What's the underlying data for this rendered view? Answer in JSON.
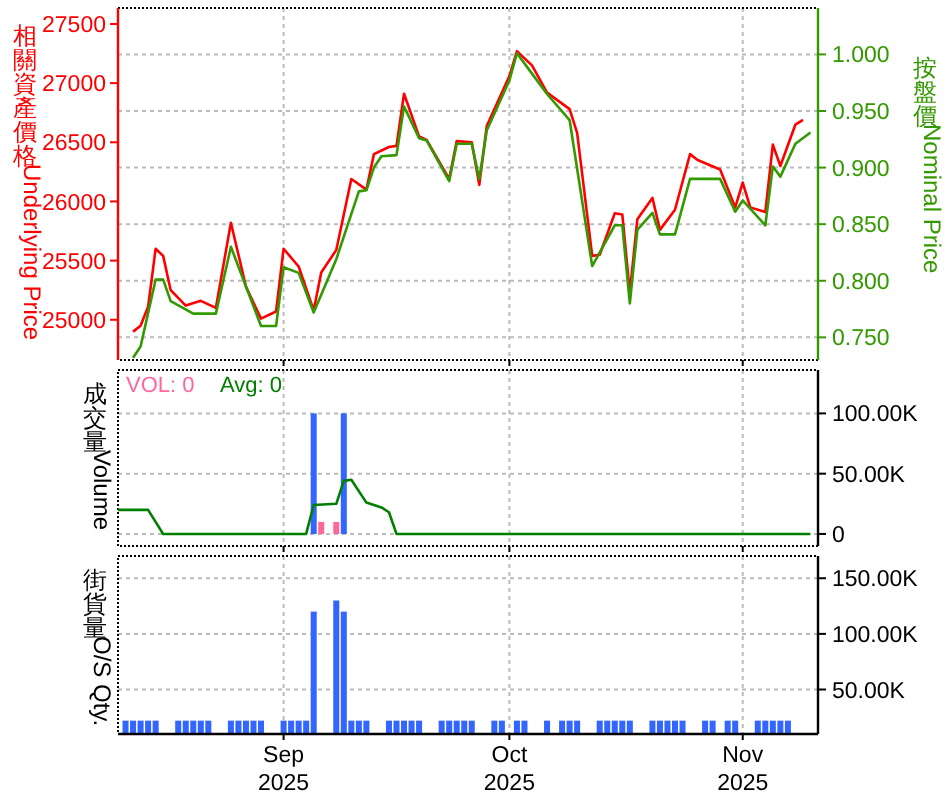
{
  "chart_data": [
    {
      "type": "line",
      "ylabel": "相關資產價格Underlying Price",
      "y2label": "按盤價Nominal Price",
      "xlim": [
        "2025-08-10",
        "2025-11-11"
      ],
      "xticks": [
        {
          "value": "2025-09-01",
          "label": null
        },
        {
          "value": "2025-10-01",
          "label": null
        },
        {
          "value": "2025-11-01",
          "label": null
        }
      ],
      "ylim": [
        24660,
        27635
      ],
      "yticks": [
        25000,
        25500,
        26000,
        26500,
        27000,
        27500
      ],
      "y2lim": [
        0.73,
        1.041
      ],
      "y2ticks": [
        {
          "value": 0.75,
          "label": "0.750"
        },
        {
          "value": 0.8,
          "label": "0.800"
        },
        {
          "value": 0.85,
          "label": "0.850"
        },
        {
          "value": 0.9,
          "label": "0.900"
        },
        {
          "value": 0.95,
          "label": "0.950"
        },
        {
          "value": 1,
          "label": "1.000"
        }
      ],
      "grid": true,
      "tick_labels": "y",
      "series": [
        {
          "color": "#ff0000",
          "x": [
            "2025-08-12",
            "2025-08-13",
            "2025-08-14",
            "2025-08-15",
            "2025-08-16",
            "2025-08-17",
            "2025-08-19",
            "2025-08-21",
            "2025-08-23",
            "2025-08-25",
            "2025-08-27",
            "2025-08-29",
            "2025-08-31",
            "2025-09-01",
            "2025-09-03",
            "2025-09-05",
            "2025-09-06",
            "2025-09-08",
            "2025-09-10",
            "2025-09-12",
            "2025-09-13",
            "2025-09-15",
            "2025-09-16",
            "2025-09-17",
            "2025-09-19",
            "2025-09-20",
            "2025-09-23",
            "2025-09-24",
            "2025-09-26",
            "2025-09-27",
            "2025-09-28",
            "2025-10-01",
            "2025-10-02",
            "2025-10-04",
            "2025-10-06",
            "2025-10-09",
            "2025-10-10",
            "2025-10-12",
            "2025-10-13",
            "2025-10-15",
            "2025-10-16",
            "2025-10-17",
            "2025-10-18",
            "2025-10-20",
            "2025-10-21",
            "2025-10-23",
            "2025-10-25",
            "2025-10-26",
            "2025-10-29",
            "2025-10-31",
            "2025-11-01",
            "2025-11-02",
            "2025-11-04",
            "2025-11-05",
            "2025-11-06",
            "2025-11-08",
            "2025-11-09"
          ],
          "values": [
            24900,
            24950,
            25110,
            25600,
            25540,
            25250,
            25120,
            25160,
            25100,
            25820,
            25280,
            25010,
            25070,
            25600,
            25450,
            25080,
            25400,
            25590,
            26190,
            26100,
            26400,
            26460,
            26470,
            26910,
            26550,
            26520,
            26190,
            26510,
            26500,
            26140,
            26640,
            27060,
            27270,
            27150,
            26920,
            26780,
            26580,
            25540,
            25550,
            25900,
            25890,
            25230,
            25850,
            26030,
            25760,
            25930,
            26400,
            26350,
            26270,
            25950,
            26160,
            25950,
            25910,
            26480,
            26300,
            26650,
            26690
          ]
        },
        {
          "color": "#339900",
          "axis": "y2",
          "x": [
            "2025-08-12",
            "2025-08-13",
            "2025-08-15",
            "2025-08-16",
            "2025-08-17",
            "2025-08-20",
            "2025-08-23",
            "2025-08-25",
            "2025-08-27",
            "2025-08-29",
            "2025-08-31",
            "2025-09-01",
            "2025-09-03",
            "2025-09-05",
            "2025-09-08",
            "2025-09-11",
            "2025-09-12",
            "2025-09-13",
            "2025-09-14",
            "2025-09-16",
            "2025-09-17",
            "2025-09-19",
            "2025-09-20",
            "2025-09-23",
            "2025-09-24",
            "2025-09-26",
            "2025-09-27",
            "2025-09-28",
            "2025-10-01",
            "2025-10-02",
            "2025-10-04",
            "2025-10-06",
            "2025-10-09",
            "2025-10-12",
            "2025-10-15",
            "2025-10-16",
            "2025-10-17",
            "2025-10-18",
            "2025-10-20",
            "2025-10-21",
            "2025-10-23",
            "2025-10-25",
            "2025-10-29",
            "2025-10-31",
            "2025-11-01",
            "2025-11-04",
            "2025-11-05",
            "2025-11-06",
            "2025-11-08",
            "2025-11-10"
          ],
          "values": [
            0.732,
            0.742,
            0.801,
            0.801,
            0.782,
            0.771,
            0.771,
            0.83,
            0.795,
            0.76,
            0.76,
            0.812,
            0.807,
            0.772,
            0.819,
            0.879,
            0.88,
            0.9,
            0.91,
            0.911,
            0.954,
            0.926,
            0.924,
            0.888,
            0.921,
            0.921,
            0.89,
            0.933,
            0.977,
            1.001,
            0.983,
            0.965,
            0.942,
            0.813,
            0.849,
            0.849,
            0.78,
            0.845,
            0.86,
            0.841,
            0.841,
            0.89,
            0.89,
            0.861,
            0.871,
            0.849,
            0.901,
            0.892,
            0.921,
            0.931
          ]
        }
      ]
    },
    {
      "type": "bar",
      "ylabel": "成交量Volume",
      "xlim": [
        "2025-08-10",
        "2025-11-11"
      ],
      "xticks": [
        {
          "value": "2025-09-01",
          "label": null
        },
        {
          "value": "2025-10-01",
          "label": null
        },
        {
          "value": "2025-11-01",
          "label": null
        }
      ],
      "ylim": [
        -10000,
        136000
      ],
      "yticks": [
        0,
        {
          "value": 50000,
          "label": "50.00K"
        },
        {
          "value": 100000,
          "label": "100.00K"
        }
      ],
      "grid": true,
      "tick_labels": "y",
      "legend": "top left",
      "series": [
        {
          "color": "#3366ff",
          "x": [
            "2025-09-05",
            "2025-09-09"
          ],
          "values": [
            100000,
            100000
          ]
        },
        {
          "name": "VOL: 0",
          "color": "#ff6699",
          "x": [
            "2025-09-06",
            "2025-09-08"
          ],
          "values": [
            10000,
            10000
          ]
        },
        {
          "name": "Avg: 0",
          "type": "line",
          "color": "#008000",
          "x": [
            "2025-08-10",
            "2025-08-14",
            "2025-08-16",
            "2025-09-04",
            "2025-09-05",
            "2025-09-08",
            "2025-09-09",
            "2025-09-10",
            "2025-09-12",
            "2025-09-14",
            "2025-09-15",
            "2025-09-16",
            "2025-11-10"
          ],
          "values": [
            20000,
            20000,
            0,
            0,
            24000,
            25000,
            44000,
            45000,
            26000,
            22000,
            18000,
            0,
            0
          ]
        }
      ]
    },
    {
      "type": "bar",
      "ylabel": "街貨量O/S Qty.",
      "xlim": [
        "2025-08-10",
        "2025-11-11"
      ],
      "xticks": [
        {
          "value": "2025-09-01",
          "label": "Sep 2025"
        },
        {
          "value": "2025-10-01",
          "label": "Oct 2025"
        },
        {
          "value": "2025-11-01",
          "label": "Nov 2025"
        }
      ],
      "ylim": [
        10000,
        170000
      ],
      "yticks": [
        {
          "value": 50000,
          "label": "50.00K"
        },
        {
          "value": 100000,
          "label": "100.00K"
        },
        {
          "value": 150000,
          "label": "150.00K"
        }
      ],
      "grid": true,
      "color": "#3366ff",
      "x": [
        "2025-08-11",
        "2025-08-12",
        "2025-08-13",
        "2025-08-14",
        "2025-08-15",
        "2025-08-18",
        "2025-08-19",
        "2025-08-20",
        "2025-08-21",
        "2025-08-22",
        "2025-08-25",
        "2025-08-26",
        "2025-08-27",
        "2025-08-28",
        "2025-08-29",
        "2025-09-01",
        "2025-09-02",
        "2025-09-03",
        "2025-09-04",
        "2025-09-05",
        "2025-09-08",
        "2025-09-09",
        "2025-09-10",
        "2025-09-11",
        "2025-09-12",
        "2025-09-15",
        "2025-09-16",
        "2025-09-17",
        "2025-09-18",
        "2025-09-19",
        "2025-09-22",
        "2025-09-23",
        "2025-09-24",
        "2025-09-25",
        "2025-09-26",
        "2025-09-29",
        "2025-09-30",
        "2025-10-02",
        "2025-10-03",
        "2025-10-06",
        "2025-10-08",
        "2025-10-09",
        "2025-10-10",
        "2025-10-13",
        "2025-10-14",
        "2025-10-15",
        "2025-10-16",
        "2025-10-17",
        "2025-10-20",
        "2025-10-21",
        "2025-10-22",
        "2025-10-23",
        "2025-10-24",
        "2025-10-27",
        "2025-10-28",
        "2025-10-30",
        "2025-10-31",
        "2025-11-03",
        "2025-11-04",
        "2025-11-05",
        "2025-11-06",
        "2025-11-07"
      ],
      "values": [
        22000,
        22000,
        22000,
        22000,
        22000,
        22000,
        22000,
        22000,
        22000,
        22000,
        22000,
        22000,
        22000,
        22000,
        22000,
        22000,
        22000,
        22000,
        22000,
        120000,
        130000,
        120000,
        22000,
        22000,
        22000,
        22000,
        22000,
        22000,
        22000,
        22000,
        22000,
        22000,
        22000,
        22000,
        22000,
        22000,
        22000,
        22000,
        22000,
        22000,
        22000,
        22000,
        22000,
        22000,
        22000,
        22000,
        22000,
        22000,
        22000,
        22000,
        22000,
        22000,
        22000,
        22000,
        22000,
        22000,
        22000,
        22000,
        22000,
        22000,
        22000,
        22000
      ]
    }
  ]
}
